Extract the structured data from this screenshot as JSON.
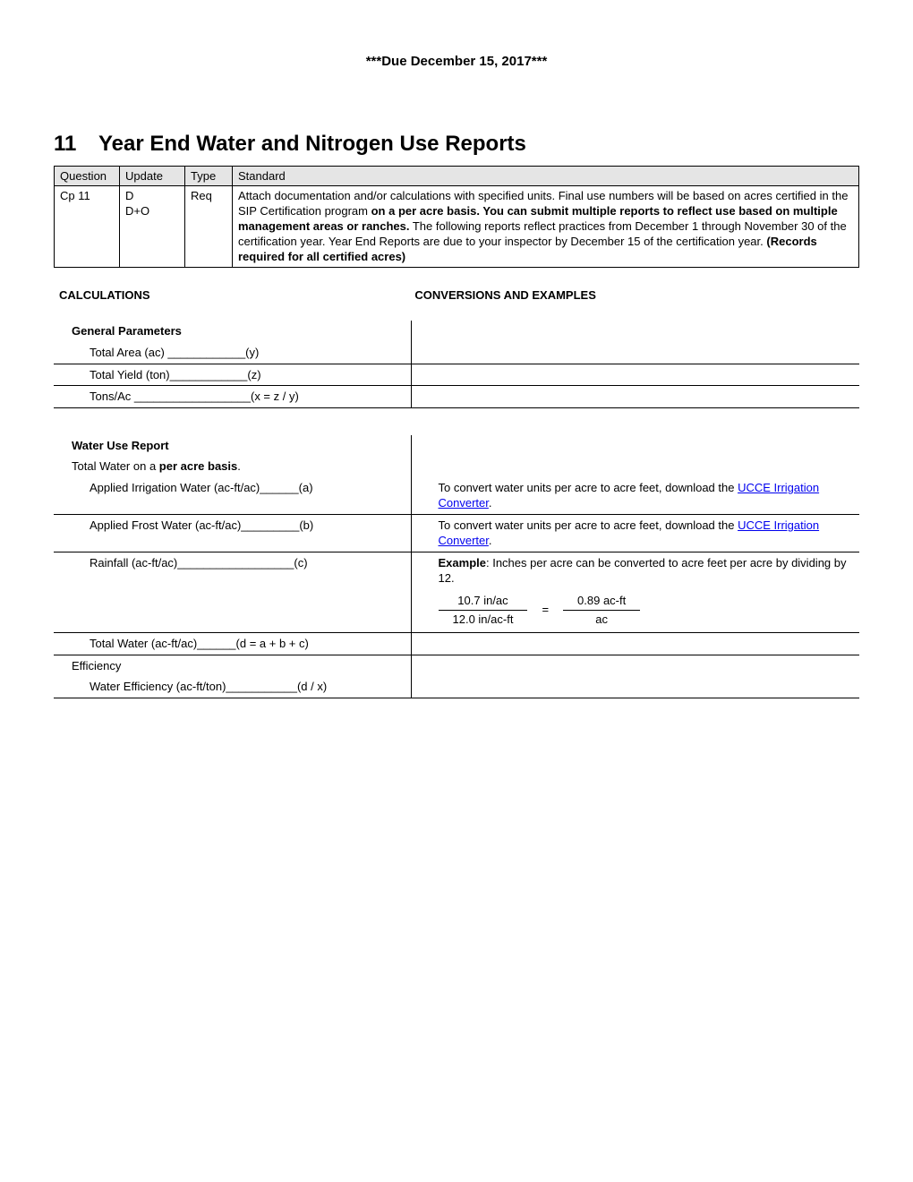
{
  "due_date": "***Due December 15, 2017***",
  "section": {
    "number": "11",
    "title": "Year End Water and Nitrogen Use Reports"
  },
  "header_table": {
    "cols": [
      "Question",
      "Update",
      "Type",
      "Standard"
    ],
    "row": {
      "question": "Cp 11",
      "update": "D\nD+O",
      "type": "Req",
      "standard_pre": "Attach documentation and/or calculations with specified units. Final use numbers will be based on acres certified in the SIP Certification program ",
      "standard_bold1": "on a per acre basis. You can submit multiple reports to reflect use based on multiple management areas or ranches.",
      "standard_mid": " The following reports reflect practices from December 1 through November 30 of the certification year. Year End Reports are due to your inspector by December 15 of the certification year. ",
      "standard_bold2": "(Records required for all certified acres)"
    }
  },
  "calc_header": {
    "left": "CALCULATIONS",
    "right": "CONVERSIONS AND EXAMPLES"
  },
  "general": {
    "heading": "General Parameters",
    "rows": {
      "area": {
        "label": "Total Area (ac) ____________(y)"
      },
      "yield": {
        "label": "Total Yield (ton)____________(z)"
      },
      "tons": {
        "label": "Tons/Ac __________________(x = z / y)"
      }
    }
  },
  "water": {
    "heading": "Water Use Report",
    "basis_pre": "Total Water on a ",
    "basis_bold": "per acre basis",
    "basis_post": ".",
    "rows": {
      "irrigation": {
        "label": "Applied Irrigation Water (ac-ft/ac)______(a)",
        "conv_pre": "To convert water units per acre to acre feet, download the ",
        "link_text": "UCCE Irrigation Converter",
        "conv_post": "."
      },
      "frost": {
        "label": "Applied Frost Water (ac-ft/ac)_________(b)",
        "conv_pre": "To convert water units per acre to acre feet, download the ",
        "link_text": "UCCE Irrigation Converter",
        "conv_post": "."
      },
      "rainfall": {
        "label": "Rainfall (ac-ft/ac)__________________(c)",
        "example_bold": "Example",
        "example_text": ": Inches per acre can be converted to acre feet per acre by dividing by 12.",
        "frac": {
          "num_l": "10.7 in/ac",
          "den_l": "12.0 in/ac-ft",
          "eq": "=",
          "num_r": "0.89 ac-ft",
          "den_r": "ac"
        }
      },
      "total": {
        "label": "Total Water (ac-ft/ac)______(d = a + b + c)"
      }
    },
    "efficiency_heading": "Efficiency",
    "efficiency_row": {
      "label": "Water Efficiency (ac-ft/ton)___________(d / x)"
    }
  }
}
